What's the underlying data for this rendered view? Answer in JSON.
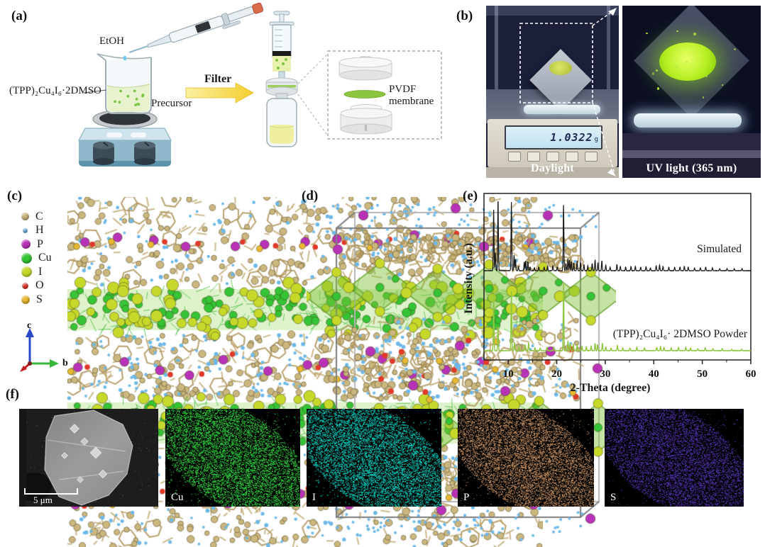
{
  "figure": {
    "panels": {
      "a": {
        "label": "(a)",
        "etoh": "EtOH",
        "compound": "(TPP)₂Cu₄I₆·2DMSO",
        "precursor": "Precursor",
        "filter": "Filter",
        "pvdf_membrane": "PVDF membrane"
      },
      "b": {
        "label": "(b)",
        "daylight": "Daylight",
        "uv": "UV light (365 nm)",
        "balance_reading": "1.0322",
        "balance_unit": "g"
      },
      "c": {
        "label": "(c)",
        "axis_c": "c",
        "axis_b": "b",
        "legend": [
          {
            "symbol": "C",
            "color": "#cbb67e"
          },
          {
            "symbol": "H",
            "color": "#6db8e8"
          },
          {
            "symbol": "P",
            "color": "#b832b8"
          },
          {
            "symbol": "Cu",
            "color": "#35c435"
          },
          {
            "symbol": "I",
            "color": "#c6d92b"
          },
          {
            "symbol": "O",
            "color": "#e0392a"
          },
          {
            "symbol": "S",
            "color": "#e8b830"
          }
        ]
      },
      "d": {
        "label": "(d)"
      },
      "e": {
        "label": "(e)"
      },
      "f": {
        "label": "(f)",
        "scale_bar": "5 μm",
        "maps": [
          {
            "label": "Cu",
            "color": "#2ecc40"
          },
          {
            "label": "I",
            "color": "#00c7b8"
          },
          {
            "label": "P",
            "color": "#c79063"
          },
          {
            "label": "S",
            "color": "#5b36b8"
          }
        ]
      }
    }
  },
  "colors": {
    "arrow_yellow": "#f5ce2e",
    "arrow_yellow_light": "#faf0a0",
    "membrane_green": "#8cc63f",
    "precursor_liquid": "#e9f2cf",
    "precursor_speck": "#7ec544",
    "filtrate_yellow": "#eef0a0",
    "powder_daylight": "#c9d44e",
    "powder_uv": "#a8e616",
    "hotplate_blue": "#8fb9cb"
  },
  "chart_data": {
    "type": "line",
    "title": "",
    "xlabel": "2-Theta (degree)",
    "ylabel": "Intensity (a.u.)",
    "xlim": [
      5,
      60
    ],
    "xticks": [
      10,
      20,
      30,
      40,
      50,
      60
    ],
    "minor_ticks": [
      15,
      25,
      35,
      45,
      55
    ],
    "grid": false,
    "legend_position": "inline-right",
    "series": [
      {
        "name": "Simulated",
        "color": "#1a1a1a",
        "baseline_frac": 0.535,
        "amp_frac": 0.43,
        "peaks": [
          [
            7.0,
            0.85
          ],
          [
            7.35,
            0.25
          ],
          [
            7.9,
            1.0
          ],
          [
            10.65,
            0.97
          ],
          [
            11.2,
            0.22
          ],
          [
            11.5,
            0.16
          ],
          [
            12.1,
            0.06
          ],
          [
            13.3,
            0.12
          ],
          [
            13.6,
            0.14
          ],
          [
            14.05,
            0.13
          ],
          [
            14.5,
            0.05
          ],
          [
            15.4,
            0.04
          ],
          [
            16.3,
            0.05
          ],
          [
            17.4,
            0.05
          ],
          [
            18.1,
            0.06
          ],
          [
            19.2,
            0.07
          ],
          [
            20.1,
            0.05
          ],
          [
            21.4,
            0.92
          ],
          [
            21.9,
            0.1
          ],
          [
            22.3,
            0.17
          ],
          [
            22.65,
            0.15
          ],
          [
            23.0,
            0.13
          ],
          [
            23.5,
            0.11
          ],
          [
            24.2,
            0.14
          ],
          [
            24.9,
            0.11
          ],
          [
            25.6,
            0.09
          ],
          [
            26.4,
            0.07
          ],
          [
            27.3,
            0.1
          ],
          [
            27.9,
            0.15
          ],
          [
            28.5,
            0.11
          ],
          [
            29.3,
            0.14
          ],
          [
            30.1,
            0.08
          ],
          [
            31.0,
            0.05
          ],
          [
            32.4,
            0.09
          ],
          [
            33.1,
            0.06
          ],
          [
            34.2,
            0.05
          ],
          [
            35.3,
            0.06
          ],
          [
            36.2,
            0.06
          ],
          [
            37.3,
            0.05
          ],
          [
            38.4,
            0.06
          ],
          [
            39.3,
            0.04
          ],
          [
            40.5,
            0.07
          ],
          [
            41.2,
            0.08
          ],
          [
            41.9,
            0.06
          ],
          [
            43.1,
            0.05
          ],
          [
            44.3,
            0.05
          ],
          [
            45.4,
            0.05
          ],
          [
            46.3,
            0.06
          ],
          [
            47.1,
            0.05
          ],
          [
            48.4,
            0.04
          ],
          [
            49.6,
            0.04
          ],
          [
            50.7,
            0.05
          ],
          [
            52.1,
            0.04
          ],
          [
            53.6,
            0.03
          ],
          [
            55.1,
            0.03
          ],
          [
            56.6,
            0.03
          ],
          [
            58.2,
            0.03
          ]
        ]
      },
      {
        "name": "(TPP)₂Cu₄I₆· 2DMSO Powder",
        "color": "#8ec63f",
        "baseline_frac": 0.055,
        "amp_frac": 0.4,
        "peaks": [
          [
            7.0,
            0.8
          ],
          [
            7.9,
            0.37
          ],
          [
            10.65,
            0.9
          ],
          [
            11.3,
            0.12
          ],
          [
            12.2,
            0.06
          ],
          [
            13.5,
            0.09
          ],
          [
            14.2,
            0.12
          ],
          [
            15.5,
            0.04
          ],
          [
            16.6,
            0.04
          ],
          [
            18.0,
            0.05
          ],
          [
            19.4,
            0.05
          ],
          [
            21.4,
            1.0
          ],
          [
            22.3,
            0.14
          ],
          [
            22.8,
            0.1
          ],
          [
            23.4,
            0.09
          ],
          [
            24.2,
            0.08
          ],
          [
            25.2,
            0.07
          ],
          [
            26.1,
            0.06
          ],
          [
            27.1,
            0.07
          ],
          [
            27.9,
            0.11
          ],
          [
            28.4,
            0.09
          ],
          [
            29.4,
            0.11
          ],
          [
            30.1,
            0.06
          ],
          [
            31.2,
            0.04
          ],
          [
            32.5,
            0.08
          ],
          [
            33.6,
            0.04
          ],
          [
            35.1,
            0.04
          ],
          [
            36.5,
            0.05
          ],
          [
            38.1,
            0.04
          ],
          [
            40.6,
            0.05
          ],
          [
            41.4,
            0.06
          ],
          [
            42.1,
            0.05
          ],
          [
            43.6,
            0.04
          ],
          [
            45.1,
            0.05
          ],
          [
            46.6,
            0.05
          ],
          [
            47.6,
            0.04
          ],
          [
            49.1,
            0.03
          ],
          [
            50.6,
            0.04
          ],
          [
            52.2,
            0.03
          ],
          [
            54.1,
            0.03
          ],
          [
            56.1,
            0.02
          ],
          [
            58.1,
            0.02
          ]
        ]
      }
    ]
  }
}
